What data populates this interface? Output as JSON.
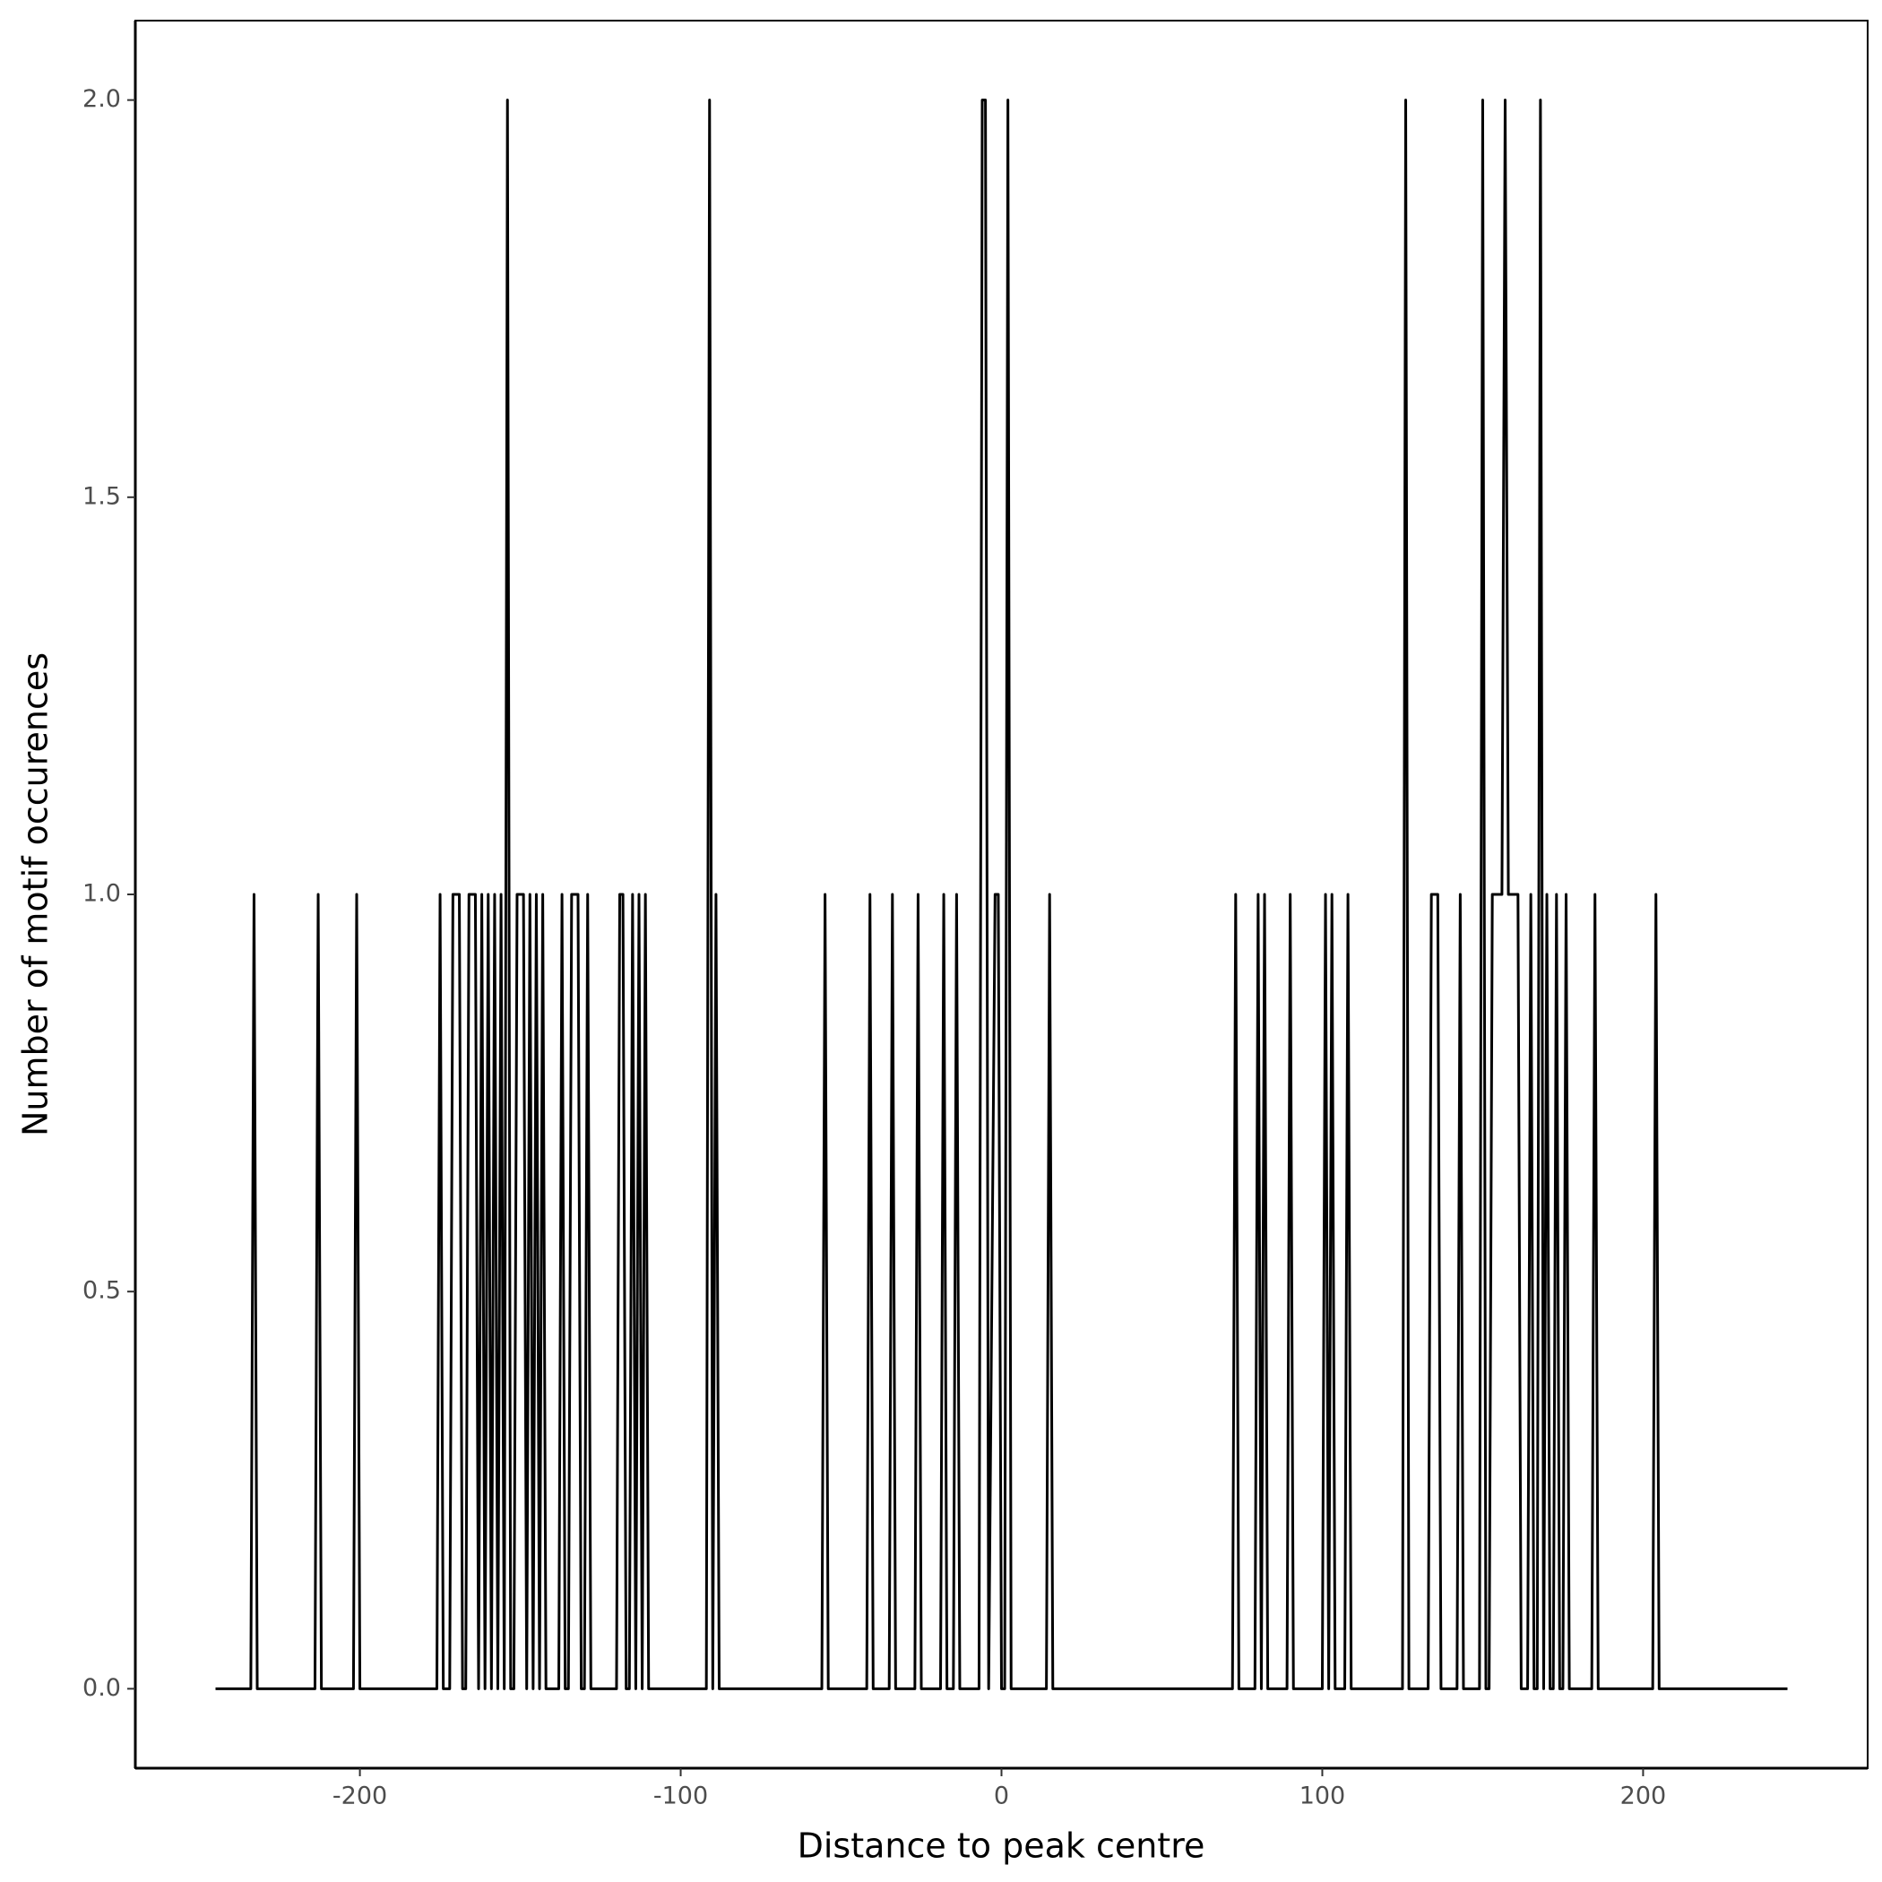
{
  "chart_data": {
    "type": "line",
    "xlabel": "Distance to peak centre",
    "ylabel": "Number of motif occurences",
    "color": "#000000",
    "x": [
      -245,
      -234,
      -233,
      -232,
      -214,
      -213,
      -212,
      -202,
      -201,
      -200,
      -176,
      -175,
      -174,
      -172,
      -171,
      -170,
      -169,
      -168,
      -167,
      -166,
      -165,
      -164,
      -163,
      -162,
      -161,
      -160,
      -159,
      -158,
      -157,
      -156,
      -155,
      -154,
      -153,
      -152,
      -151,
      -150,
      -149,
      -148,
      -147,
      -146,
      -145,
      -144,
      -143,
      -142,
      -138,
      -137,
      -136,
      -135,
      -134,
      -133,
      -132,
      -131,
      -130,
      -129,
      -128,
      -120,
      -119,
      -118,
      -117,
      -116,
      -115,
      -114,
      -113,
      -112,
      -111,
      -110,
      -92,
      -91,
      -90,
      -89,
      -88,
      -56,
      -55,
      -54,
      -42,
      -41,
      -40,
      -35,
      -34,
      -33,
      -27,
      -26,
      -25,
      -19,
      -18,
      -17,
      -15,
      -14,
      -13,
      -7,
      -6,
      -5,
      -4,
      -2,
      -1,
      0,
      1,
      2,
      3,
      14,
      15,
      16,
      72,
      73,
      74,
      79,
      80,
      81,
      82,
      83,
      89,
      90,
      91,
      100,
      101,
      102,
      103,
      104,
      107,
      108,
      109,
      125,
      126,
      127,
      133,
      134,
      135,
      136,
      137,
      142,
      143,
      144,
      149,
      150,
      151,
      152,
      153,
      154,
      155,
      156,
      157,
      158,
      159,
      160,
      161,
      162,
      164,
      165,
      166,
      167,
      168,
      169,
      170,
      171,
      172,
      173,
      174,
      175,
      176,
      177,
      184,
      185,
      186,
      203,
      204,
      205,
      245
    ],
    "values": [
      0,
      0,
      1,
      0,
      0,
      1,
      0,
      0,
      1,
      0,
      0,
      1,
      0,
      0,
      1,
      1,
      1,
      0,
      0,
      1,
      1,
      1,
      0,
      1,
      0,
      1,
      0,
      1,
      0,
      1,
      0,
      2,
      0,
      0,
      1,
      1,
      1,
      0,
      1,
      0,
      1,
      0,
      1,
      0,
      0,
      1,
      0,
      0,
      1,
      1,
      1,
      0,
      0,
      1,
      0,
      0,
      1,
      1,
      0,
      0,
      1,
      0,
      1,
      0,
      1,
      0,
      0,
      2,
      0,
      1,
      0,
      0,
      1,
      0,
      0,
      1,
      0,
      0,
      1,
      0,
      0,
      1,
      0,
      0,
      1,
      0,
      0,
      1,
      0,
      0,
      2,
      2,
      0,
      1,
      1,
      0,
      0,
      2,
      0,
      0,
      1,
      0,
      0,
      1,
      0,
      0,
      1,
      0,
      1,
      0,
      0,
      1,
      0,
      0,
      1,
      0,
      1,
      0,
      0,
      1,
      0,
      0,
      2,
      0,
      0,
      1,
      1,
      1,
      0,
      0,
      1,
      0,
      0,
      2,
      0,
      0,
      1,
      1,
      1,
      1,
      2,
      1,
      1,
      1,
      1,
      0,
      0,
      1,
      0,
      0,
      2,
      0,
      1,
      0,
      0,
      1,
      0,
      0,
      1,
      0,
      0,
      1,
      0,
      0,
      1,
      0,
      0
    ],
    "xlim": [
      -270,
      270
    ],
    "ylim": [
      -0.1,
      2.1
    ],
    "xticks": [
      -200,
      -100,
      0,
      100,
      200
    ],
    "yticks": [
      {
        "value": 0,
        "label": "0.0"
      },
      0.5,
      {
        "value": 1,
        "label": "1.0"
      },
      1.5,
      {
        "value": 2,
        "label": "2.0"
      }
    ]
  }
}
